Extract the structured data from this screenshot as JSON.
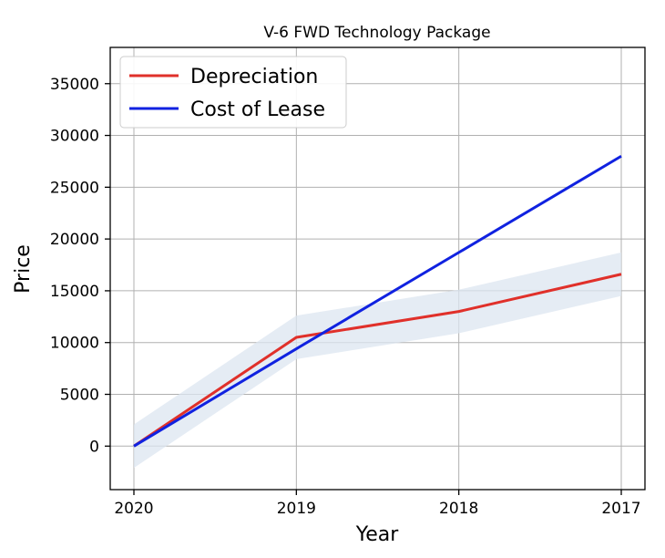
{
  "chart_data": {
    "type": "line",
    "title": "V-6 FWD Technology Package",
    "xlabel": "Year",
    "ylabel": "Price",
    "categories": [
      "2020",
      "2019",
      "2018",
      "2017"
    ],
    "ylim": [
      -4200,
      38500
    ],
    "yticks": [
      0,
      5000,
      10000,
      15000,
      20000,
      25000,
      30000,
      35000
    ],
    "grid": true,
    "legend_position": "top-left",
    "series": [
      {
        "name": "Depreciation",
        "color": "#e0302a",
        "values": [
          0,
          10500,
          13000,
          16600
        ],
        "band_lower": [
          -2100,
          8400,
          10900,
          14500
        ],
        "band_upper": [
          2100,
          12600,
          15100,
          18700
        ],
        "band_color": "#dce6f0"
      },
      {
        "name": "Cost of Lease",
        "color": "#1022e0",
        "values": [
          0,
          9400,
          18700,
          28000
        ]
      }
    ]
  }
}
